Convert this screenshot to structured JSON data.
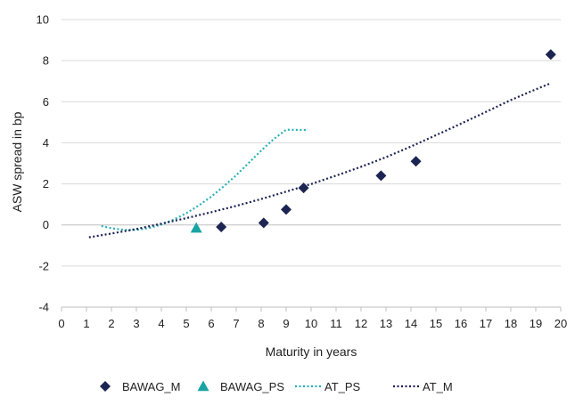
{
  "chart_data": {
    "type": "scatter",
    "title": "",
    "xlabel": "Maturity in years",
    "ylabel": "ASW spread in bp",
    "xlim": [
      0,
      20
    ],
    "ylim": [
      -4,
      10
    ],
    "x_ticks": [
      "0",
      "1",
      "2",
      "3",
      "4",
      "5",
      "6",
      "7",
      "8",
      "9",
      "10",
      "11",
      "12",
      "13",
      "14",
      "15",
      "16",
      "17",
      "18",
      "19",
      "20"
    ],
    "y_ticks": [
      "-4",
      "-2",
      "0",
      "2",
      "4",
      "6",
      "8",
      "10"
    ],
    "grid": "horizontal",
    "legend_position": "bottom",
    "series": [
      {
        "name": "BAWAG_M",
        "kind": "points",
        "marker": "diamond",
        "color": "#1c2452",
        "points": [
          [
            6.4,
            -0.1
          ],
          [
            8.1,
            0.1
          ],
          [
            9.0,
            0.75
          ],
          [
            9.7,
            1.8
          ],
          [
            12.8,
            2.4
          ],
          [
            14.2,
            3.1
          ],
          [
            19.6,
            8.3
          ]
        ]
      },
      {
        "name": "BAWAG_PS",
        "kind": "points",
        "marker": "triangle",
        "color": "#1aa3a3",
        "points": [
          [
            5.4,
            -0.15
          ]
        ]
      },
      {
        "name": "AT_PS",
        "kind": "trendline",
        "style": "dotted",
        "color": "#2ab0b8",
        "points": [
          [
            1.6,
            -0.05
          ],
          [
            2.0,
            -0.16
          ],
          [
            2.5,
            -0.24
          ],
          [
            3.0,
            -0.24
          ],
          [
            3.5,
            -0.15
          ],
          [
            4.0,
            0.02
          ],
          [
            4.5,
            0.26
          ],
          [
            5.0,
            0.57
          ],
          [
            5.5,
            0.95
          ],
          [
            6.0,
            1.38
          ],
          [
            6.5,
            1.88
          ],
          [
            7.0,
            2.42
          ],
          [
            7.5,
            3.02
          ],
          [
            8.0,
            3.62
          ],
          [
            8.5,
            4.18
          ],
          [
            9.0,
            4.64
          ],
          [
            9.8,
            4.62
          ]
        ]
      },
      {
        "name": "AT_M",
        "kind": "trendline",
        "style": "dotted",
        "color": "#1c2452",
        "points": [
          [
            1.1,
            -0.6
          ],
          [
            2.0,
            -0.42
          ],
          [
            3.0,
            -0.2
          ],
          [
            4.0,
            0.06
          ],
          [
            5.0,
            0.33
          ],
          [
            6.0,
            0.62
          ],
          [
            7.0,
            0.93
          ],
          [
            8.0,
            1.26
          ],
          [
            9.0,
            1.62
          ],
          [
            10.0,
            1.99
          ],
          [
            11.0,
            2.4
          ],
          [
            12.0,
            2.83
          ],
          [
            13.0,
            3.3
          ],
          [
            14.0,
            3.82
          ],
          [
            15.0,
            4.37
          ],
          [
            16.0,
            4.93
          ],
          [
            17.0,
            5.5
          ],
          [
            18.0,
            6.08
          ],
          [
            19.0,
            6.6
          ],
          [
            19.6,
            6.9
          ]
        ]
      }
    ]
  }
}
